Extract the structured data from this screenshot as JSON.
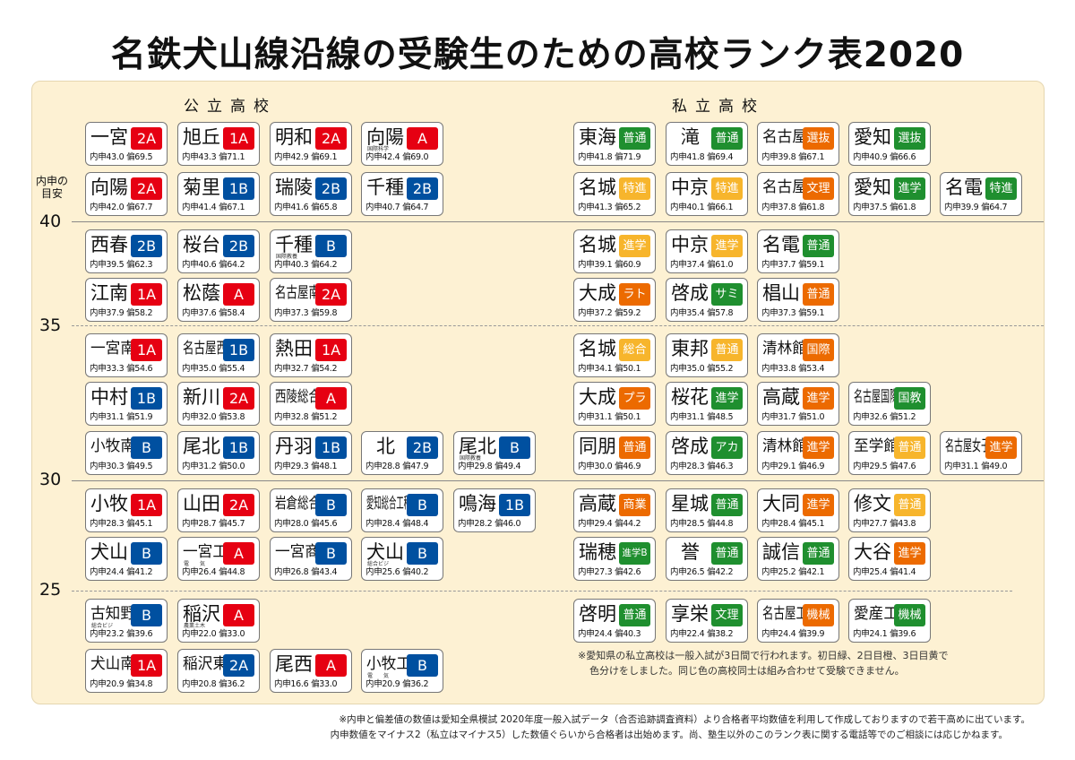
{
  "title": "名鉄犬山線沿線の受験生のための高校ランク表2020",
  "headings": {
    "public": "公立高校",
    "private": "私立高校"
  },
  "axis": {
    "title_line1": "内申の",
    "title_line2": "目安",
    "ticks": [
      "40",
      "35",
      "30",
      "25"
    ]
  },
  "labels": {
    "naishin": "内申",
    "hensa": "偏"
  },
  "colors": {
    "r": "#e60012",
    "b": "#0050a0",
    "g": "#1f8f2f",
    "o": "#ec6a00",
    "y": "#f7b52c"
  },
  "rows": [
    {
      "public": [
        {
          "name": "一宮",
          "badge": "2A",
          "c": "r",
          "n": "43.0",
          "h": "69.5"
        },
        {
          "name": "旭丘",
          "badge": "1A",
          "c": "r",
          "n": "43.3",
          "h": "71.1"
        },
        {
          "name": "明和",
          "badge": "2A",
          "c": "r",
          "n": "42.9",
          "h": "69.1"
        },
        {
          "name": "向陽",
          "sub": "国際科学",
          "badge": "A",
          "c": "r",
          "n": "42.4",
          "h": "69.0"
        }
      ],
      "private": [
        {
          "name": "東海",
          "badge": "普通",
          "c": "g",
          "n": "41.8",
          "h": "71.9"
        },
        {
          "name": "滝",
          "badge": "普通",
          "c": "g",
          "n": "41.8",
          "h": "69.4"
        },
        {
          "name": "名古屋",
          "badge": "選抜",
          "c": "o",
          "n": "39.8",
          "h": "67.1"
        },
        {
          "name": "愛知",
          "badge": "選抜",
          "c": "g",
          "n": "40.9",
          "h": "66.6"
        }
      ]
    },
    {
      "public": [
        {
          "name": "向陽",
          "badge": "2A",
          "c": "r",
          "n": "42.0",
          "h": "67.7"
        },
        {
          "name": "菊里",
          "badge": "1B",
          "c": "b",
          "n": "41.4",
          "h": "67.1"
        },
        {
          "name": "瑞陵",
          "badge": "2B",
          "c": "b",
          "n": "41.6",
          "h": "65.8"
        },
        {
          "name": "千種",
          "badge": "2B",
          "c": "b",
          "n": "40.7",
          "h": "64.7"
        }
      ],
      "private": [
        {
          "name": "名城",
          "badge": "特進",
          "c": "y",
          "n": "41.3",
          "h": "65.2"
        },
        {
          "name": "中京",
          "badge": "特進",
          "c": "y",
          "n": "40.1",
          "h": "66.1"
        },
        {
          "name": "名古屋",
          "badge": "文理",
          "c": "o",
          "n": "37.8",
          "h": "61.8"
        },
        {
          "name": "愛知",
          "badge": "進学",
          "c": "g",
          "n": "37.5",
          "h": "61.8"
        },
        {
          "name": "名電",
          "badge": "特進",
          "c": "g",
          "n": "39.9",
          "h": "64.7"
        }
      ]
    },
    {
      "public": [
        {
          "name": "西春",
          "badge": "2B",
          "c": "b",
          "n": "39.5",
          "h": "62.3"
        },
        {
          "name": "桜台",
          "badge": "2B",
          "c": "b",
          "n": "40.6",
          "h": "64.2"
        },
        {
          "name": "千種",
          "sub": "国際教養",
          "badge": "B",
          "c": "b",
          "n": "40.3",
          "h": "64.2"
        }
      ],
      "private": [
        {
          "name": "名城",
          "badge": "進学",
          "c": "y",
          "n": "39.1",
          "h": "60.9"
        },
        {
          "name": "中京",
          "badge": "進学",
          "c": "y",
          "n": "37.4",
          "h": "61.0"
        },
        {
          "name": "名電",
          "badge": "普通",
          "c": "g",
          "n": "37.7",
          "h": "59.1"
        }
      ]
    },
    {
      "public": [
        {
          "name": "江南",
          "badge": "1A",
          "c": "r",
          "n": "37.9",
          "h": "58.2"
        },
        {
          "name": "松蔭",
          "badge": "A",
          "c": "r",
          "n": "37.6",
          "h": "58.4"
        },
        {
          "name": "名古屋南",
          "badge": "2A",
          "c": "r",
          "n": "37.3",
          "h": "59.8"
        }
      ],
      "private": [
        {
          "name": "大成",
          "badge": "ラト",
          "c": "o",
          "n": "37.2",
          "h": "59.2"
        },
        {
          "name": "啓成",
          "badge": "サミ",
          "c": "g",
          "n": "35.4",
          "h": "57.8"
        },
        {
          "name": "椙山",
          "badge": "普通",
          "c": "o",
          "n": "37.3",
          "h": "59.1"
        }
      ]
    },
    {
      "public": [
        {
          "name": "一宮南",
          "badge": "1A",
          "c": "r",
          "n": "33.3",
          "h": "54.6"
        },
        {
          "name": "名古屋西",
          "badge": "1B",
          "c": "b",
          "n": "35.0",
          "h": "55.4"
        },
        {
          "name": "熱田",
          "badge": "1A",
          "c": "r",
          "n": "32.7",
          "h": "54.2"
        }
      ],
      "private": [
        {
          "name": "名城",
          "badge": "総合",
          "c": "y",
          "n": "34.1",
          "h": "50.1"
        },
        {
          "name": "東邦",
          "badge": "普通",
          "c": "y",
          "n": "35.0",
          "h": "55.2"
        },
        {
          "name": "清林館",
          "badge": "国際",
          "c": "o",
          "n": "33.8",
          "h": "53.4"
        }
      ]
    },
    {
      "public": [
        {
          "name": "中村",
          "badge": "1B",
          "c": "b",
          "n": "31.1",
          "h": "51.9"
        },
        {
          "name": "新川",
          "badge": "2A",
          "c": "r",
          "n": "32.0",
          "h": "53.8"
        },
        {
          "name": "西陵総合",
          "badge": "A",
          "c": "r",
          "n": "32.8",
          "h": "51.2"
        }
      ],
      "private": [
        {
          "name": "大成",
          "badge": "プラ",
          "c": "o",
          "n": "31.1",
          "h": "50.1"
        },
        {
          "name": "桜花",
          "badge": "進学",
          "c": "g",
          "n": "31.1",
          "h": "48.5"
        },
        {
          "name": "高蔵",
          "badge": "進学",
          "c": "o",
          "n": "31.7",
          "h": "51.0"
        },
        {
          "name": "名古屋国際",
          "badge": "国教",
          "c": "g",
          "n": "32.6",
          "h": "51.2"
        }
      ]
    },
    {
      "public": [
        {
          "name": "小牧南",
          "badge": "B",
          "c": "b",
          "n": "30.3",
          "h": "49.5"
        },
        {
          "name": "尾北",
          "badge": "1B",
          "c": "b",
          "n": "31.2",
          "h": "50.0"
        },
        {
          "name": "丹羽",
          "badge": "1B",
          "c": "b",
          "n": "29.3",
          "h": "48.1"
        },
        {
          "name": "北",
          "badge": "2B",
          "c": "b",
          "n": "28.8",
          "h": "47.9"
        },
        {
          "name": "尾北",
          "sub": "国際教養",
          "badge": "B",
          "c": "b",
          "n": "29.8",
          "h": "49.4"
        }
      ],
      "private": [
        {
          "name": "同朋",
          "badge": "普通",
          "c": "o",
          "n": "30.0",
          "h": "46.9"
        },
        {
          "name": "啓成",
          "badge": "アカ",
          "c": "g",
          "n": "28.3",
          "h": "46.3"
        },
        {
          "name": "清林館",
          "badge": "進学",
          "c": "o",
          "n": "29.1",
          "h": "46.9"
        },
        {
          "name": "至学館",
          "badge": "普通",
          "c": "y",
          "n": "29.5",
          "h": "47.6"
        },
        {
          "name": "名古屋女子",
          "badge": "進学",
          "c": "o",
          "n": "31.1",
          "h": "49.0"
        }
      ]
    },
    {
      "public": [
        {
          "name": "小牧",
          "badge": "1A",
          "c": "r",
          "n": "28.3",
          "h": "45.1"
        },
        {
          "name": "山田",
          "badge": "2A",
          "c": "r",
          "n": "28.7",
          "h": "45.7"
        },
        {
          "name": "岩倉総合",
          "badge": "B",
          "c": "b",
          "n": "28.0",
          "h": "45.6"
        },
        {
          "name": "愛知総合工科",
          "badge": "B",
          "c": "b",
          "n": "28.4",
          "h": "48.4"
        },
        {
          "name": "鳴海",
          "badge": "1B",
          "c": "b",
          "n": "28.2",
          "h": "46.0"
        }
      ],
      "private": [
        {
          "name": "高蔵",
          "badge": "商業",
          "c": "o",
          "n": "29.4",
          "h": "44.2"
        },
        {
          "name": "星城",
          "badge": "普通",
          "c": "g",
          "n": "28.5",
          "h": "44.8"
        },
        {
          "name": "大同",
          "badge": "進学",
          "c": "o",
          "n": "28.4",
          "h": "45.1"
        },
        {
          "name": "修文",
          "badge": "普通",
          "c": "y",
          "n": "27.7",
          "h": "43.8"
        }
      ]
    },
    {
      "public": [
        {
          "name": "犬山",
          "badge": "B",
          "c": "b",
          "n": "24.4",
          "h": "41.2"
        },
        {
          "name": "一宮工",
          "sub": "電　　気",
          "badge": "A",
          "c": "r",
          "n": "26.4",
          "h": "44.8"
        },
        {
          "name": "一宮商",
          "badge": "B",
          "c": "b",
          "n": "26.8",
          "h": "43.4"
        },
        {
          "name": "犬山",
          "sub": "総合ビジ",
          "badge": "B",
          "c": "b",
          "n": "25.6",
          "h": "40.2"
        }
      ],
      "private": [
        {
          "name": "瑞穂",
          "badge": "進学B",
          "c": "g",
          "n": "27.3",
          "h": "42.6"
        },
        {
          "name": "誉",
          "badge": "普通",
          "c": "g",
          "n": "26.5",
          "h": "42.2"
        },
        {
          "name": "誠信",
          "badge": "普通",
          "c": "g",
          "n": "25.2",
          "h": "42.1"
        },
        {
          "name": "大谷",
          "badge": "進学",
          "c": "o",
          "n": "25.4",
          "h": "41.4"
        }
      ]
    },
    {
      "public": [
        {
          "name": "古知野",
          "sub": "総合ビジ",
          "badge": "B",
          "c": "b",
          "n": "23.2",
          "h": "39.6"
        },
        {
          "name": "稲沢",
          "sub": "農業土木",
          "badge": "A",
          "c": "r",
          "n": "22.0",
          "h": "33.0"
        }
      ],
      "private": [
        {
          "name": "啓明",
          "badge": "普通",
          "c": "g",
          "n": "24.4",
          "h": "40.3"
        },
        {
          "name": "享栄",
          "badge": "文理",
          "c": "g",
          "n": "22.4",
          "h": "38.2"
        },
        {
          "name": "名古屋工",
          "badge": "機械",
          "c": "o",
          "n": "24.4",
          "h": "39.9"
        },
        {
          "name": "愛産工",
          "badge": "機械",
          "c": "g",
          "n": "24.1",
          "h": "39.6"
        }
      ]
    },
    {
      "public": [
        {
          "name": "犬山南",
          "badge": "1A",
          "c": "r",
          "n": "20.9",
          "h": "34.8"
        },
        {
          "name": "稲沢東",
          "badge": "2A",
          "c": "b",
          "n": "20.8",
          "h": "36.2"
        },
        {
          "name": "尾西",
          "badge": "A",
          "c": "r",
          "n": "16.6",
          "h": "33.0"
        },
        {
          "name": "小牧工",
          "sub": "電　　気",
          "badge": "B",
          "c": "b",
          "n": "20.9",
          "h": "36.2"
        }
      ],
      "private": []
    }
  ],
  "private_note": [
    "※愛知県の私立高校は一般入試が3日間で行われます。初日緑、2日目橙、3日目黄で",
    "色分けをしました。同じ色の高校同士は組み合わせて受験できません。"
  ],
  "footer": [
    "※内申と偏差値の数値は愛知全県模試 2020年度一般入試データ（合否追跡調査資料）より合格者平均数値を利用して作成しておりますので若干高めに出ています。",
    "内申数値をマイナス2（私立はマイナス5）した数値ぐらいから合格者は出始めます。尚、塾生以外のこのランク表に関する電話等でのご相談には応じかねます。"
  ]
}
